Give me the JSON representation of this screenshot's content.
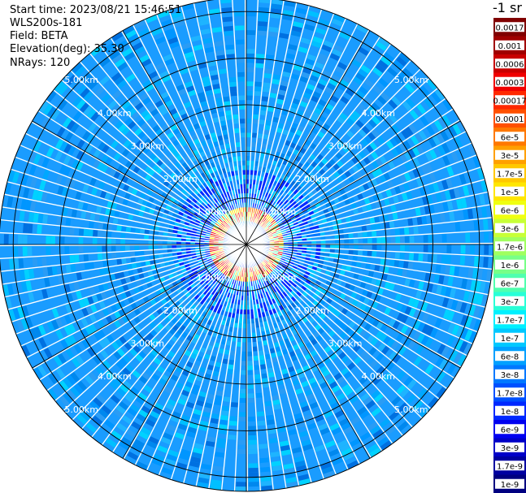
{
  "header": {
    "start_time": "Start time: 2023/08/21 15:46:51",
    "instrument": "WLS200s-181",
    "field": "Field: BETA",
    "elevation": "Elevation(deg): 35.30",
    "nrays": "NRays: 120"
  },
  "colorbar": {
    "unit_label": "-1 sr",
    "labels": [
      "0.0017",
      "0.001",
      "0.0006",
      "0.0003",
      "0.00017",
      "0.0001",
      "6e-5",
      "3e-5",
      "1.7e-5",
      "1e-5",
      "6e-6",
      "3e-6",
      "1.7e-6",
      "1e-6",
      "6e-7",
      "3e-7",
      "1.7e-7",
      "1e-7",
      "6e-8",
      "3e-8",
      "1.7e-8",
      "1e-8",
      "6e-9",
      "3e-9",
      "1.7e-9",
      "1e-9"
    ],
    "colors": [
      "#800000",
      "#a00000",
      "#c80000",
      "#f00000",
      "#ff2800",
      "#ff5000",
      "#ff7800",
      "#ffa000",
      "#ffc800",
      "#ffe600",
      "#f0ff10",
      "#c8ff37",
      "#a0ff5f",
      "#78ff87",
      "#50ffaf",
      "#28ffd7",
      "#00f0ff",
      "#00c8ff",
      "#00a0ff",
      "#0078ff",
      "#0050ff",
      "#0028ff",
      "#0000f0",
      "#0000c8",
      "#0000a0",
      "#000080"
    ]
  },
  "chart_data": {
    "type": "heatmap",
    "projection": "polar PPI",
    "field": "BETA",
    "units": "sr^-1",
    "scale": "log",
    "color_range": [
      1e-09,
      0.0017
    ],
    "nrays": 120,
    "range_rings_km": [
      1,
      2,
      3,
      4,
      5
    ],
    "range_ring_labels": [
      "1.00km",
      "2.00km",
      "3.00km",
      "4.00km",
      "5.00km"
    ],
    "azimuth_lines_deg": [
      0,
      30,
      60,
      90,
      120,
      150,
      180,
      210,
      240,
      270,
      300,
      330
    ],
    "max_range_km": 5.3,
    "background_level": "1e-8 to 3e-8",
    "high_backscatter_ring_km": [
      0.45,
      0.65
    ],
    "high_backscatter_level": "3e-6 to 6e-5",
    "grid": true,
    "legend": "right colorbar"
  }
}
